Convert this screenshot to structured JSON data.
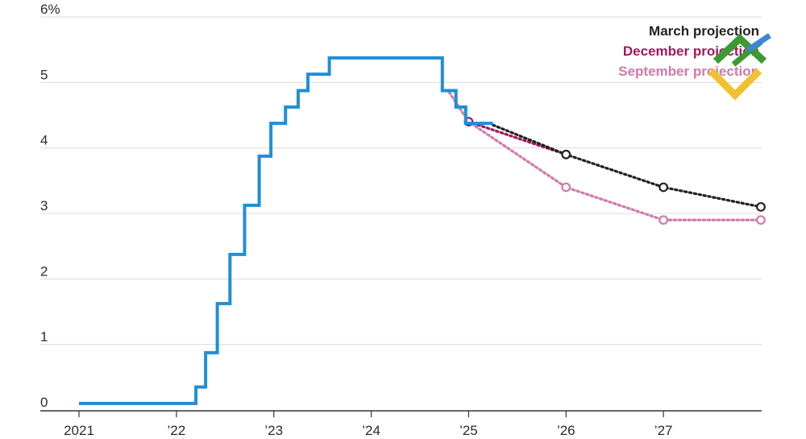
{
  "chart_data": {
    "type": "line",
    "x_unit": "year",
    "ylim": [
      0,
      6
    ],
    "y_ticks": [
      {
        "value": 0,
        "label": "0"
      },
      {
        "value": 1,
        "label": "1"
      },
      {
        "value": 2,
        "label": "2"
      },
      {
        "value": 3,
        "label": "3"
      },
      {
        "value": 4,
        "label": "4"
      },
      {
        "value": 5,
        "label": "5"
      },
      {
        "value": 6,
        "label": "6%"
      }
    ],
    "x_ticks": [
      {
        "value": 2021,
        "label": "2021"
      },
      {
        "value": 2022,
        "label": "’22"
      },
      {
        "value": 2023,
        "label": "’23"
      },
      {
        "value": 2024,
        "label": "’24"
      },
      {
        "value": 2025,
        "label": "’25"
      },
      {
        "value": 2026,
        "label": "’26"
      },
      {
        "value": 2027,
        "label": "’27"
      }
    ],
    "grid": "horizontal",
    "legend_position": "top-right",
    "series": [
      {
        "key": "actual",
        "style": "step",
        "color": "#1f8fd6",
        "x": [
          2021.0,
          2022.2,
          2022.3,
          2022.42,
          2022.55,
          2022.7,
          2022.85,
          2022.97,
          2023.12,
          2023.25,
          2023.35,
          2023.57,
          2024.73,
          2024.87,
          2024.97,
          2025.25
        ],
        "y": [
          0.1,
          0.35,
          0.875,
          1.625,
          2.375,
          3.125,
          3.875,
          4.375,
          4.625,
          4.875,
          5.125,
          5.375,
          4.875,
          4.625,
          4.375,
          4.375
        ]
      },
      {
        "name": "March projection",
        "style": "dotted",
        "color": "#222222",
        "x": [
          2025.25,
          2026.0,
          2027.0,
          2028.0
        ],
        "y": [
          4.35,
          3.9,
          3.4,
          3.1
        ],
        "marker_x": [
          2026.0,
          2027.0,
          2028.0
        ],
        "marker_y": [
          3.9,
          3.4,
          3.1
        ]
      },
      {
        "name": "December projection",
        "style": "dotted",
        "color": "#a3175e",
        "x": [
          2025.0,
          2026.0
        ],
        "y": [
          4.4,
          3.9
        ],
        "marker_x": [
          2025.0
        ],
        "marker_y": [
          4.4
        ]
      },
      {
        "name": "September projection",
        "style": "dotted",
        "color": "#cf7aaa",
        "x": [
          2024.8,
          2025.0,
          2026.0,
          2027.0,
          2028.0
        ],
        "y": [
          4.85,
          4.4,
          3.4,
          2.9,
          2.9
        ],
        "marker_x": [
          2025.0,
          2026.0,
          2027.0,
          2028.0
        ],
        "marker_y": [
          4.4,
          3.4,
          2.9,
          2.9
        ]
      }
    ]
  }
}
